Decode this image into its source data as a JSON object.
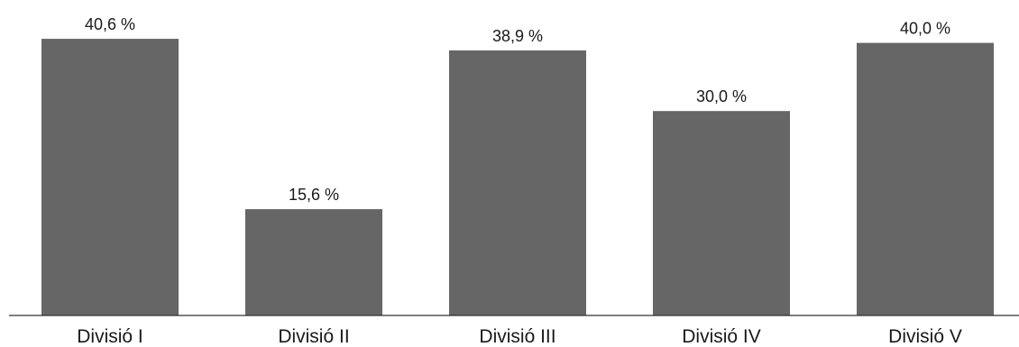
{
  "chart_data": {
    "type": "bar",
    "categories": [
      "Divisió I",
      "Divisió II",
      "Divisió III",
      "Divisió IV",
      "Divisió V"
    ],
    "values": [
      40.6,
      15.6,
      38.9,
      30.0,
      40.0
    ],
    "data_labels": [
      "40,6 %",
      "15,6 %",
      "38,9 %",
      "30,0 %",
      "40,0 %"
    ],
    "title": "",
    "xlabel": "",
    "ylabel": "",
    "ylim": [
      0,
      44
    ],
    "grid": false,
    "legend": "none",
    "bar_color": "#666666"
  }
}
